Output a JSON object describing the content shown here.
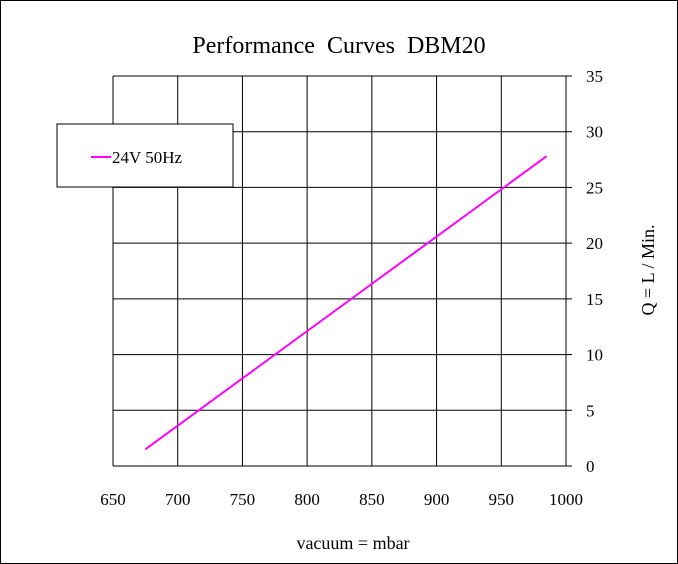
{
  "chart_data": {
    "type": "line",
    "title": "Performance  Curves  DBM20",
    "xlabel": "vacuum = mbar",
    "ylabel": "Q = L / Min.",
    "xlim": [
      650,
      1000
    ],
    "ylim": [
      0,
      35
    ],
    "x_ticks": [
      650,
      700,
      750,
      800,
      850,
      900,
      950,
      1000
    ],
    "y_ticks": [
      0,
      5,
      10,
      15,
      20,
      25,
      30,
      35
    ],
    "y_axis_side": "right",
    "grid": true,
    "legend_placement": "top-left",
    "series": [
      {
        "name": "24V 50Hz",
        "color": "#ff00ff",
        "x": [
          675,
          985
        ],
        "y": [
          1.5,
          27.8
        ]
      }
    ]
  }
}
